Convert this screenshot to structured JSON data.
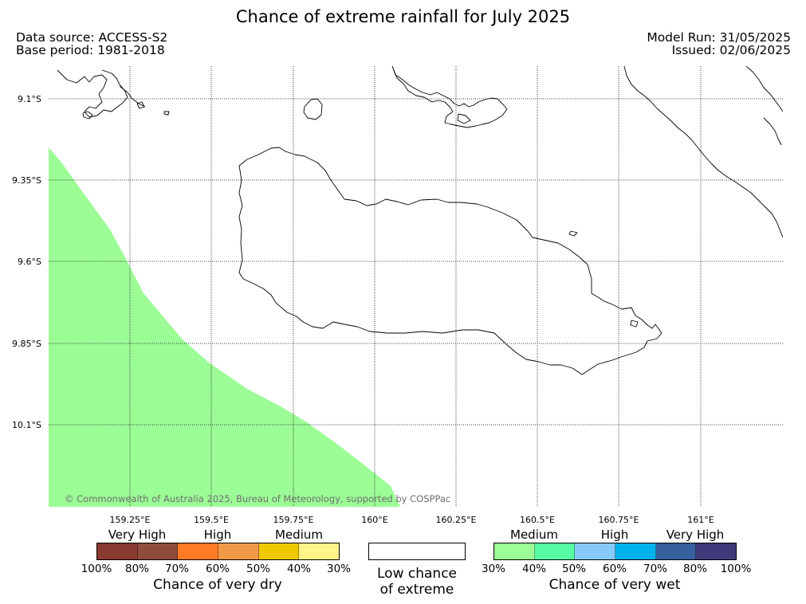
{
  "title": "Chance of extreme rainfall for July 2025",
  "meta": {
    "data_source": "Data source: ACCESS-S2",
    "base_period": "Base period: 1981-2018",
    "model_run": "Model Run: 31/05/2025",
    "issued": "Issued: 02/06/2025"
  },
  "map": {
    "lat_labels": [
      "9.1°S",
      "9.35°S",
      "9.6°S",
      "9.85°S",
      "10.1°S"
    ],
    "lon_labels": [
      "159.25°E",
      "159.5°E",
      "159.75°E",
      "160°E",
      "160.25°E",
      "160.5°E",
      "160.75°E",
      "161°E"
    ],
    "copyright": "© Commonwealth of Australia 2025, Bureau of Meteorology, supported by COSPPac",
    "shaded_region": {
      "category": "Medium",
      "direction": "very wet",
      "range": "30%-40%",
      "color": "#9cfc96"
    }
  },
  "legend": {
    "dry": {
      "title": "Chance of very dry",
      "categories": [
        "Very High",
        "High",
        "Medium"
      ],
      "ticks": [
        "100%",
        "80%",
        "70%",
        "60%",
        "50%",
        "40%",
        "30%"
      ],
      "colors": [
        "#8b3a32",
        "#8e4d3c",
        "#ff7b26",
        "#f09a48",
        "#f0c800",
        "#fff48a"
      ]
    },
    "low": {
      "line1": "Low chance",
      "line2": "of extreme"
    },
    "wet": {
      "title": "Chance of very wet",
      "categories": [
        "Medium",
        "High",
        "Very High"
      ],
      "ticks": [
        "30%",
        "40%",
        "50%",
        "60%",
        "70%",
        "80%",
        "100%"
      ],
      "colors": [
        "#9cfc96",
        "#56fca4",
        "#86cafc",
        "#00b2ec",
        "#36609e",
        "#3f3a7a"
      ]
    }
  }
}
